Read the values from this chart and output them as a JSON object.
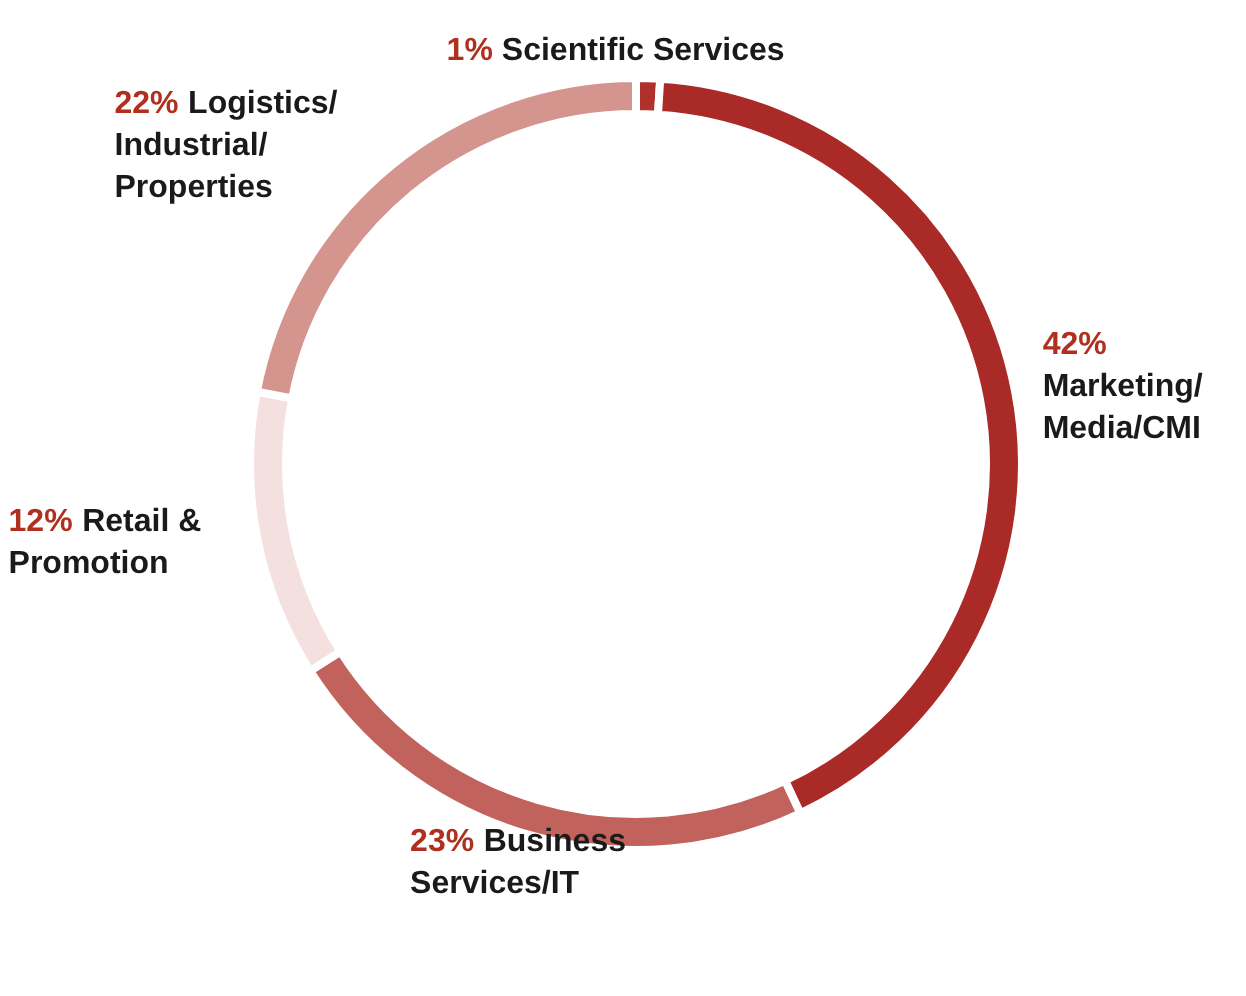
{
  "chart_data": {
    "type": "donut",
    "categories": [
      "Scientific Services",
      "Marketing/\nMedia/CMI",
      "Business\nServices/IT",
      "Retail &\nPromotion",
      "Logistics/\nIndustrial/\nProperties"
    ],
    "values": [
      1,
      42,
      23,
      12,
      22
    ],
    "colors": [
      "#b0302b",
      "#a92a26",
      "#c1625c",
      "#f4e1df",
      "#d4958f"
    ],
    "value_labels": [
      "1%",
      "42%",
      "23%",
      "12%",
      "22%"
    ]
  }
}
